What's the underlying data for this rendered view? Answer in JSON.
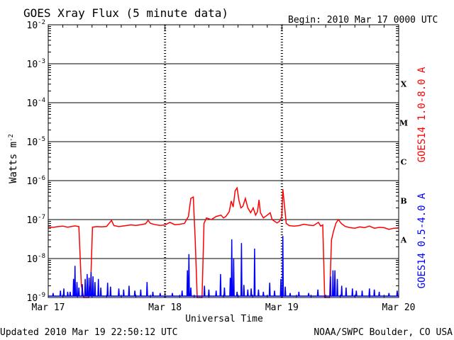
{
  "header": {
    "title": "GOES Xray Flux (5 minute data)",
    "begin": "Begin:  2010 Mar 17 0000 UTC"
  },
  "footer": {
    "updated": "Updated 2010 Mar 19 22:50:12 UTC",
    "credit": "NOAA/SWPC Boulder, CO USA"
  },
  "colors": {
    "long_channel": "#ff0000",
    "short_channel": "#0000ff",
    "axis": "#000000",
    "background": "#ffffff"
  },
  "chart_data": {
    "type": "line",
    "title": "GOES Xray Flux (5 minute data)",
    "xlabel": "Universal Time",
    "ylabel": "Watts m",
    "ylabel_superscript": "-2",
    "y_scale": "log",
    "ylim": [
      1e-09,
      0.01
    ],
    "y_ticks": [
      {
        "base": "10",
        "exp": "-2",
        "value": 0.01
      },
      {
        "base": "10",
        "exp": "-3",
        "value": 0.001
      },
      {
        "base": "10",
        "exp": "-4",
        "value": 0.0001
      },
      {
        "base": "10",
        "exp": "-5",
        "value": 1e-05
      },
      {
        "base": "10",
        "exp": "-6",
        "value": 1e-06
      },
      {
        "base": "10",
        "exp": "-7",
        "value": 1e-07
      },
      {
        "base": "10",
        "exp": "-8",
        "value": 1e-08
      },
      {
        "base": "10",
        "exp": "-9",
        "value": 1e-09
      }
    ],
    "x_ticks": [
      "Mar 17",
      "Mar 18",
      "Mar 19",
      "Mar 20"
    ],
    "xlim_hours": [
      0,
      72
    ],
    "flare_classes": [
      {
        "label": "X",
        "value": 0.0001
      },
      {
        "label": "M",
        "value": 1e-05
      },
      {
        "label": "C",
        "value": 1e-06
      },
      {
        "label": "B",
        "value": 1e-07
      },
      {
        "label": "A",
        "value": 1e-08
      }
    ],
    "grid": true,
    "series": [
      {
        "name": "GOES14 1.0-8.0 A",
        "color": "#ff0000",
        "points": [
          [
            0,
            6.5e-08
          ],
          [
            1,
            6.3e-08
          ],
          [
            2,
            6.6e-08
          ],
          [
            3,
            6.8e-08
          ],
          [
            4,
            6.4e-08
          ],
          [
            5.5,
            6.9e-08
          ],
          [
            6.3,
            6.6e-08
          ],
          [
            6.8,
            2e-09
          ],
          [
            7.3,
            1e-09
          ],
          [
            8.3,
            1e-09
          ],
          [
            8.7,
            2e-09
          ],
          [
            9.1,
            6.4e-08
          ],
          [
            10,
            6.6e-08
          ],
          [
            11,
            6.5e-08
          ],
          [
            12,
            6.7e-08
          ],
          [
            12.5,
            8e-08
          ],
          [
            13,
            9.5e-08
          ],
          [
            13.5,
            7e-08
          ],
          [
            14.5,
            6.6e-08
          ],
          [
            16,
            7e-08
          ],
          [
            17,
            7.3e-08
          ],
          [
            18,
            7.1e-08
          ],
          [
            19,
            7.4e-08
          ],
          [
            20,
            7.8e-08
          ],
          [
            20.5,
            9.5e-08
          ],
          [
            21,
            8e-08
          ],
          [
            22,
            7.4e-08
          ],
          [
            23,
            7.1e-08
          ],
          [
            24,
            7.3e-08
          ],
          [
            25,
            8.5e-08
          ],
          [
            26,
            7.4e-08
          ],
          [
            27,
            7.6e-08
          ],
          [
            28,
            8e-08
          ],
          [
            28.8,
            1.2e-07
          ],
          [
            29.3,
            3.5e-07
          ],
          [
            29.8,
            3.8e-07
          ],
          [
            30.2,
            3e-08
          ],
          [
            30.6,
            1e-09
          ],
          [
            31.6,
            1e-09
          ],
          [
            32,
            8e-08
          ],
          [
            32.5,
            1.1e-07
          ],
          [
            33.5,
            1e-07
          ],
          [
            34.5,
            1.2e-07
          ],
          [
            35.5,
            1.3e-07
          ],
          [
            36,
            1.1e-07
          ],
          [
            36.5,
            1.2e-07
          ],
          [
            37.2,
            1.6e-07
          ],
          [
            37.6,
            3e-07
          ],
          [
            38,
            2.1e-07
          ],
          [
            38.4,
            5.5e-07
          ],
          [
            38.8,
            6.5e-07
          ],
          [
            39.2,
            3e-07
          ],
          [
            39.6,
            2e-07
          ],
          [
            40,
            2.2e-07
          ],
          [
            40.5,
            3.5e-07
          ],
          [
            41,
            2e-07
          ],
          [
            41.6,
            1.5e-07
          ],
          [
            42.1,
            2e-07
          ],
          [
            42.6,
            1.3e-07
          ],
          [
            43,
            1.6e-07
          ],
          [
            43.3,
            3.2e-07
          ],
          [
            43.6,
            1.5e-07
          ],
          [
            44.2,
            1.1e-07
          ],
          [
            45,
            1.3e-07
          ],
          [
            45.6,
            1.5e-07
          ],
          [
            46,
            1e-07
          ],
          [
            47,
            8.2e-08
          ],
          [
            47.5,
            9e-08
          ],
          [
            48,
            1.2e-07
          ],
          [
            48.2,
            6e-07
          ],
          [
            48.5,
            2.5e-07
          ],
          [
            48.9,
            8e-08
          ],
          [
            49.5,
            7e-08
          ],
          [
            50.5,
            6.8e-08
          ],
          [
            51.5,
            7e-08
          ],
          [
            52.5,
            7.6e-08
          ],
          [
            53.5,
            7.2e-08
          ],
          [
            54.5,
            7e-08
          ],
          [
            55.5,
            8.5e-08
          ],
          [
            56,
            6.8e-08
          ],
          [
            56.4,
            7.3e-08
          ],
          [
            56.8,
            1e-09
          ],
          [
            57.8,
            1e-09
          ],
          [
            58.2,
            3e-08
          ],
          [
            58.6,
            5e-08
          ],
          [
            59.1,
            8e-08
          ],
          [
            59.6,
            1e-07
          ],
          [
            60.2,
            8e-08
          ],
          [
            61,
            6.7e-08
          ],
          [
            62,
            6.2e-08
          ],
          [
            63,
            6e-08
          ],
          [
            64,
            6.5e-08
          ],
          [
            65,
            6.2e-08
          ],
          [
            66,
            6.8e-08
          ],
          [
            67,
            6e-08
          ],
          [
            68,
            6.3e-08
          ],
          [
            69,
            6.2e-08
          ],
          [
            70,
            5.6e-08
          ],
          [
            71,
            6e-08
          ],
          [
            72,
            6.1e-08
          ]
        ]
      },
      {
        "name": "GOES14 0.5-4.0 A",
        "color": "#0000ff",
        "baseline": 1e-09,
        "spikes": [
          [
            1,
            1.3e-09
          ],
          [
            2.5,
            1.5e-09
          ],
          [
            3.2,
            1.7e-09
          ],
          [
            4,
            1.4e-09
          ],
          [
            4.5,
            1.4e-09
          ],
          [
            5.2,
            3e-09
          ],
          [
            5.5,
            6.5e-09
          ],
          [
            5.9,
            2.5e-09
          ],
          [
            6.3,
            1.8e-09
          ],
          [
            7,
            2.2e-09
          ],
          [
            7.6,
            3e-09
          ],
          [
            8,
            4e-09
          ],
          [
            8.4,
            3.2e-09
          ],
          [
            8.8,
            4.5e-09
          ],
          [
            9.2,
            3.5e-09
          ],
          [
            9.6,
            2.5e-09
          ],
          [
            10.3,
            3e-09
          ],
          [
            10.8,
            1.8e-09
          ],
          [
            12.2,
            2.4e-09
          ],
          [
            12.8,
            1.9e-09
          ],
          [
            14.5,
            1.7e-09
          ],
          [
            15.5,
            1.6e-09
          ],
          [
            16.6,
            2e-09
          ],
          [
            17.8,
            1.5e-09
          ],
          [
            19,
            1.6e-09
          ],
          [
            20.3,
            2.5e-09
          ],
          [
            21.5,
            1.4e-09
          ],
          [
            23,
            1.3e-09
          ],
          [
            25.5,
            1.3e-09
          ],
          [
            27.5,
            1.5e-09
          ],
          [
            28.6,
            5e-09
          ],
          [
            28.9,
            1.3e-08
          ],
          [
            29.3,
            1.8e-09
          ],
          [
            32.1,
            2e-09
          ],
          [
            33,
            1.6e-09
          ],
          [
            34.5,
            1.5e-09
          ],
          [
            35.4,
            4e-09
          ],
          [
            36.2,
            1.8e-09
          ],
          [
            37.4,
            3.2e-09
          ],
          [
            37.7,
            3.1e-08
          ],
          [
            38.1,
            1e-08
          ],
          [
            38.8,
            1.4e-09
          ],
          [
            39.7,
            2.5e-08
          ],
          [
            40.2,
            2.1e-09
          ],
          [
            41,
            1.6e-09
          ],
          [
            41.7,
            1.7e-09
          ],
          [
            42.4,
            1.8e-08
          ],
          [
            43.2,
            1.6e-09
          ],
          [
            44.2,
            1.4e-09
          ],
          [
            45.5,
            2.4e-09
          ],
          [
            46.5,
            1.5e-09
          ],
          [
            47.8,
            3e-09
          ],
          [
            48.2,
            3.8e-08
          ],
          [
            48.7,
            1.9e-09
          ],
          [
            49.7,
            1.3e-09
          ],
          [
            51.5,
            1.4e-09
          ],
          [
            53.5,
            1.3e-09
          ],
          [
            55.4,
            1.6e-09
          ],
          [
            58,
            3.5e-09
          ],
          [
            58.5,
            5e-09
          ],
          [
            58.9,
            5e-09
          ],
          [
            59.4,
            3e-09
          ],
          [
            60.3,
            2e-09
          ],
          [
            61.2,
            1.8e-09
          ],
          [
            62.5,
            1.7e-09
          ],
          [
            63.3,
            1.5e-09
          ],
          [
            64.5,
            1.5e-09
          ],
          [
            66,
            1.7e-09
          ],
          [
            67,
            1.6e-09
          ],
          [
            68,
            1.4e-09
          ],
          [
            70,
            1.3e-09
          ],
          [
            71.7,
            1.5e-09
          ]
        ]
      }
    ]
  }
}
